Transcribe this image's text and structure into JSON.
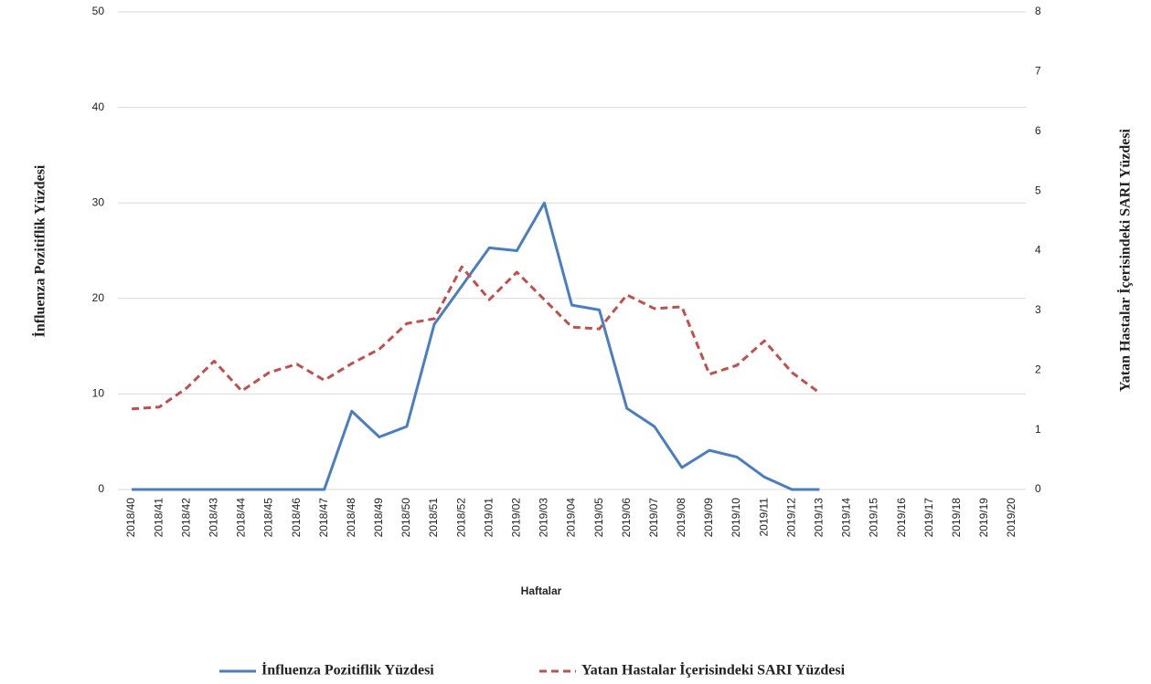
{
  "chart_data": {
    "type": "line",
    "x_label": "Haftalar",
    "y_label": "İnfluenza Pozitiflik Yüzdesi",
    "y2_label": "Yatan Hastalar İçerisindeki SARI Yüzdesi",
    "categories": [
      "2018/40",
      "2018/41",
      "2018/42",
      "2018/43",
      "2018/44",
      "2018/45",
      "2018/46",
      "2018/47",
      "2018/48",
      "2018/49",
      "2018/50",
      "2018/51",
      "2018/52",
      "2019/01",
      "2019/02",
      "2019/03",
      "2019/04",
      "2019/05",
      "2019/06",
      "2019/07",
      "2019/08",
      "2019/09",
      "2019/10",
      "2019/11",
      "2019/12",
      "2019/13",
      "2019/14",
      "2019/15",
      "2019/16",
      "2019/17",
      "2019/18",
      "2019/19",
      "2019/20"
    ],
    "series": [
      {
        "name": "İnfluenza Pozitiflik Yüzdesi",
        "color": "#4a7ec2",
        "dash": false,
        "values": [
          0,
          0,
          0,
          0,
          0,
          0,
          0,
          0,
          8.2,
          5.5,
          6.6,
          17.3,
          21.3,
          25.3,
          25.0,
          30.0,
          19.3,
          18.8,
          8.5,
          6.6,
          2.3,
          4.1,
          3.4,
          1.3,
          0,
          0,
          null,
          null,
          null,
          null,
          null,
          null,
          null
        ]
      },
      {
        "name": "Yatan Hastalar İçerisindeki SARI Yüzdesi",
        "color": "#c0504d",
        "dash": true,
        "axis": "y2",
        "values": [
          1.35,
          1.38,
          1.7,
          2.15,
          1.65,
          1.96,
          2.1,
          1.83,
          2.11,
          2.35,
          2.78,
          2.86,
          3.73,
          3.18,
          3.64,
          3.18,
          2.72,
          2.69,
          3.26,
          3.03,
          3.06,
          1.93,
          2.08,
          2.49,
          1.96,
          1.62,
          null,
          null,
          null,
          null,
          null,
          null,
          null
        ]
      }
    ],
    "ylim": [
      0,
      50
    ],
    "yticks": [
      0,
      10,
      20,
      30,
      40,
      50
    ],
    "y2lim": [
      0,
      8
    ],
    "y2ticks": [
      0,
      1,
      2,
      3,
      4,
      5,
      6,
      7,
      8
    ],
    "grid": true,
    "legend": "bottom"
  }
}
